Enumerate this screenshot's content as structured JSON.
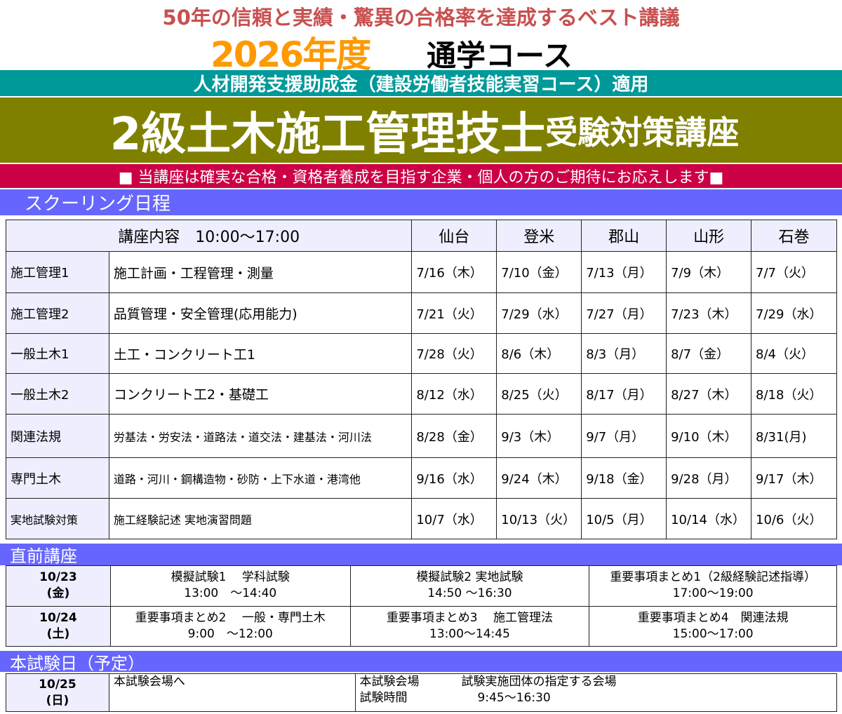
{
  "header": {
    "tagline": "50年の信頼と実績・驚異の合格率を達成するベスト講議",
    "year": "2026年度",
    "course": "通学コース",
    "subsidy": "人材開発支援助成金（建設労働者技能実習コース）適用",
    "title_main": "2級土木施工管理技士",
    "title_sub": "受験対策講座",
    "message": "■ 当講座は確実な合格・資格者養成を目指す企業・個人の方のご期待にお応えします■"
  },
  "schooling": {
    "section_title": "スクーリング日程",
    "header_label": "講座内容　10:00～17:00",
    "cities": [
      "仙台",
      "登米",
      "郡山",
      "山形",
      "石巻"
    ],
    "rows": [
      {
        "subject": "施工管理1",
        "content": "施工計画・工程管理・測量",
        "dates": [
          "7/16（木）",
          "7/10（金）",
          "7/13（月）",
          "7/9（木）",
          "7/7（火）"
        ]
      },
      {
        "subject": "施工管理2",
        "content": "品質管理・安全管理(応用能力)",
        "dates": [
          "7/21（火）",
          "7/29（水）",
          "7/27（月）",
          "7/23（木）",
          "7/29（水）"
        ]
      },
      {
        "subject": "一般土木1",
        "content": "土工・コンクリート工1",
        "dates": [
          "7/28（火）",
          "8/6（木）",
          "8/3（月）",
          "8/7（金）",
          "8/4（火）"
        ]
      },
      {
        "subject": "一般土木2",
        "content": "コンクリート工2・基礎工",
        "dates": [
          "8/12（水）",
          "8/25（火）",
          "8/17（月）",
          "8/27（木）",
          "8/18（火）"
        ]
      },
      {
        "subject": "関連法規",
        "content": "労基法・労安法・道路法・道交法・建基法・河川法",
        "dates": [
          "8/28（金）",
          "9/3（木）",
          "9/7（月）",
          "9/10（木）",
          "8/31(月)"
        ]
      },
      {
        "subject": "専門土木",
        "content": "道路・河川・鋼構造物・砂防・上下水道・港湾他",
        "dates": [
          "9/16（水）",
          "9/24（木）",
          "9/18（金）",
          "9/28（月）",
          "9/17（木）"
        ]
      },
      {
        "subject": "実地試験対策",
        "content": "施工経験記述 実地演習問題",
        "dates": [
          "10/7（水）",
          "10/13（火）",
          "10/5（月）",
          "10/14（水）",
          "10/6（火）"
        ]
      }
    ]
  },
  "pre_lectures": {
    "section_title": "直前講座",
    "rows": [
      {
        "date": "10/23",
        "day": "(金)",
        "sessions": [
          {
            "title": "模擬試験1　 学科試験",
            "time": "13:00　～14:40"
          },
          {
            "title": "模擬試験2 実地試験",
            "time": "14:50 ～16:30"
          },
          {
            "title": "重要事項まとめ1（2級経験記述指導）",
            "time": "17:00～19:00"
          }
        ]
      },
      {
        "date": "10/24",
        "day": "(土)",
        "sessions": [
          {
            "title": "重要事項まとめ2　 一般・専門土木",
            "time": "9:00　～12:00"
          },
          {
            "title": "重要事項まとめ3　 施工管理法",
            "time": "13:00～14:45"
          },
          {
            "title": "重要事項まとめ4　関連法規",
            "time": "15:00～17:00"
          }
        ]
      }
    ]
  },
  "exam": {
    "section_title": "本試験日（予定）",
    "date": "10/25",
    "day": "(日)",
    "note": "本試験会場へ",
    "venue_label": "本試験会場",
    "venue": "試験実施団体の指定する会場",
    "time_label": "試験時間",
    "time": "9:45～16:30"
  }
}
